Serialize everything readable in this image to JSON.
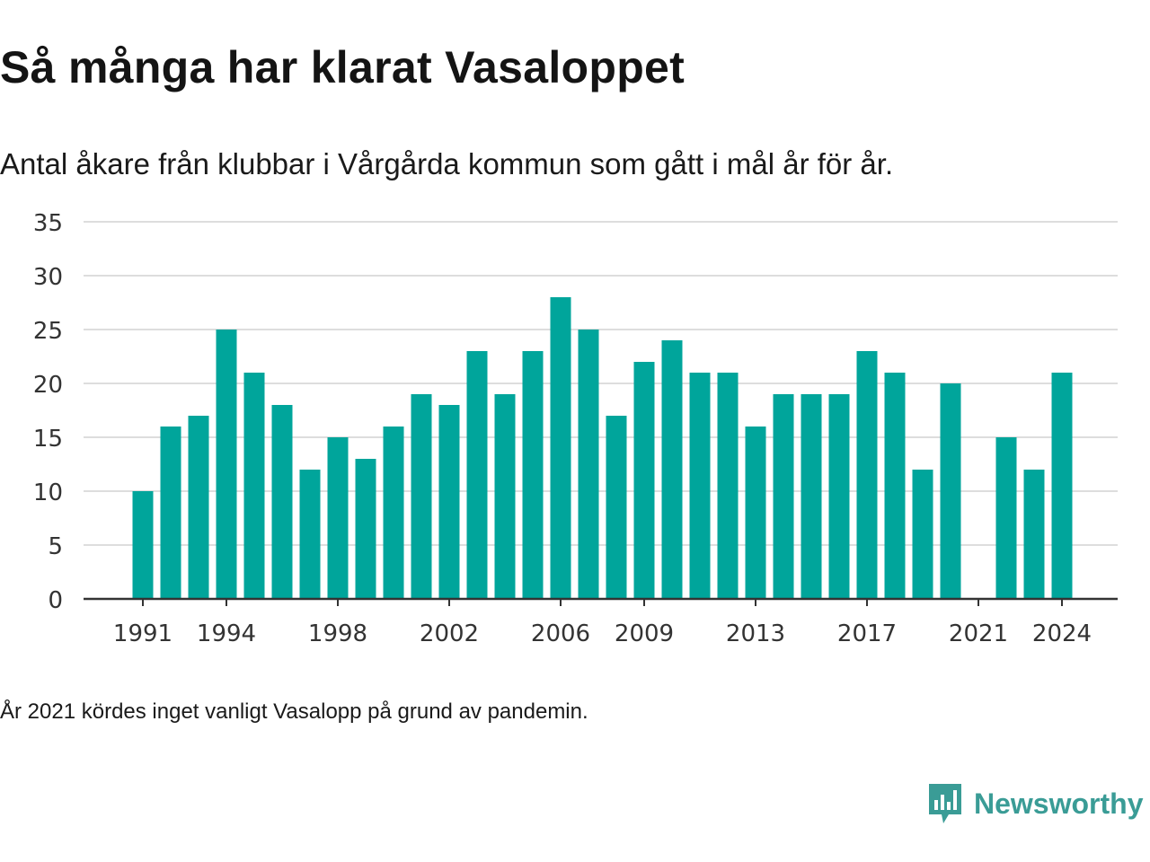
{
  "title": "Så många har klarat Vasaloppet",
  "subtitle": "Antal åkare från klubbar i Vårgårda kommun som gått i mål år för år.",
  "footnote": "År 2021 kördes inget vanligt Vasalopp på grund av pandemin.",
  "brand": {
    "name": "Newsworthy",
    "icon": "newsworthy-logo-icon",
    "color": "#3a9c96"
  },
  "colors": {
    "bar": "#00a59b",
    "grid": "#dddddd",
    "axis": "#333333"
  },
  "chart_data": {
    "type": "bar",
    "x": [
      1991,
      1992,
      1993,
      1994,
      1995,
      1996,
      1997,
      1998,
      1999,
      2000,
      2001,
      2002,
      2003,
      2004,
      2005,
      2006,
      2007,
      2008,
      2009,
      2010,
      2011,
      2012,
      2013,
      2014,
      2015,
      2016,
      2017,
      2018,
      2019,
      2020,
      2021,
      2022,
      2023,
      2024
    ],
    "values": [
      10,
      16,
      17,
      25,
      21,
      18,
      12,
      15,
      13,
      16,
      19,
      18,
      23,
      19,
      23,
      28,
      25,
      17,
      22,
      24,
      21,
      21,
      16,
      19,
      19,
      19,
      23,
      21,
      12,
      20,
      null,
      15,
      12,
      21
    ],
    "x_tick_labels": [
      "1991",
      "1994",
      "1998",
      "2002",
      "2006",
      "2009",
      "2013",
      "2017",
      "2021",
      "2024"
    ],
    "y_ticks": [
      0,
      5,
      10,
      15,
      20,
      25,
      30,
      35
    ],
    "ylim": [
      0,
      35
    ],
    "xlabel": "",
    "ylabel": "",
    "grid": "horizontal",
    "legend": "none"
  }
}
